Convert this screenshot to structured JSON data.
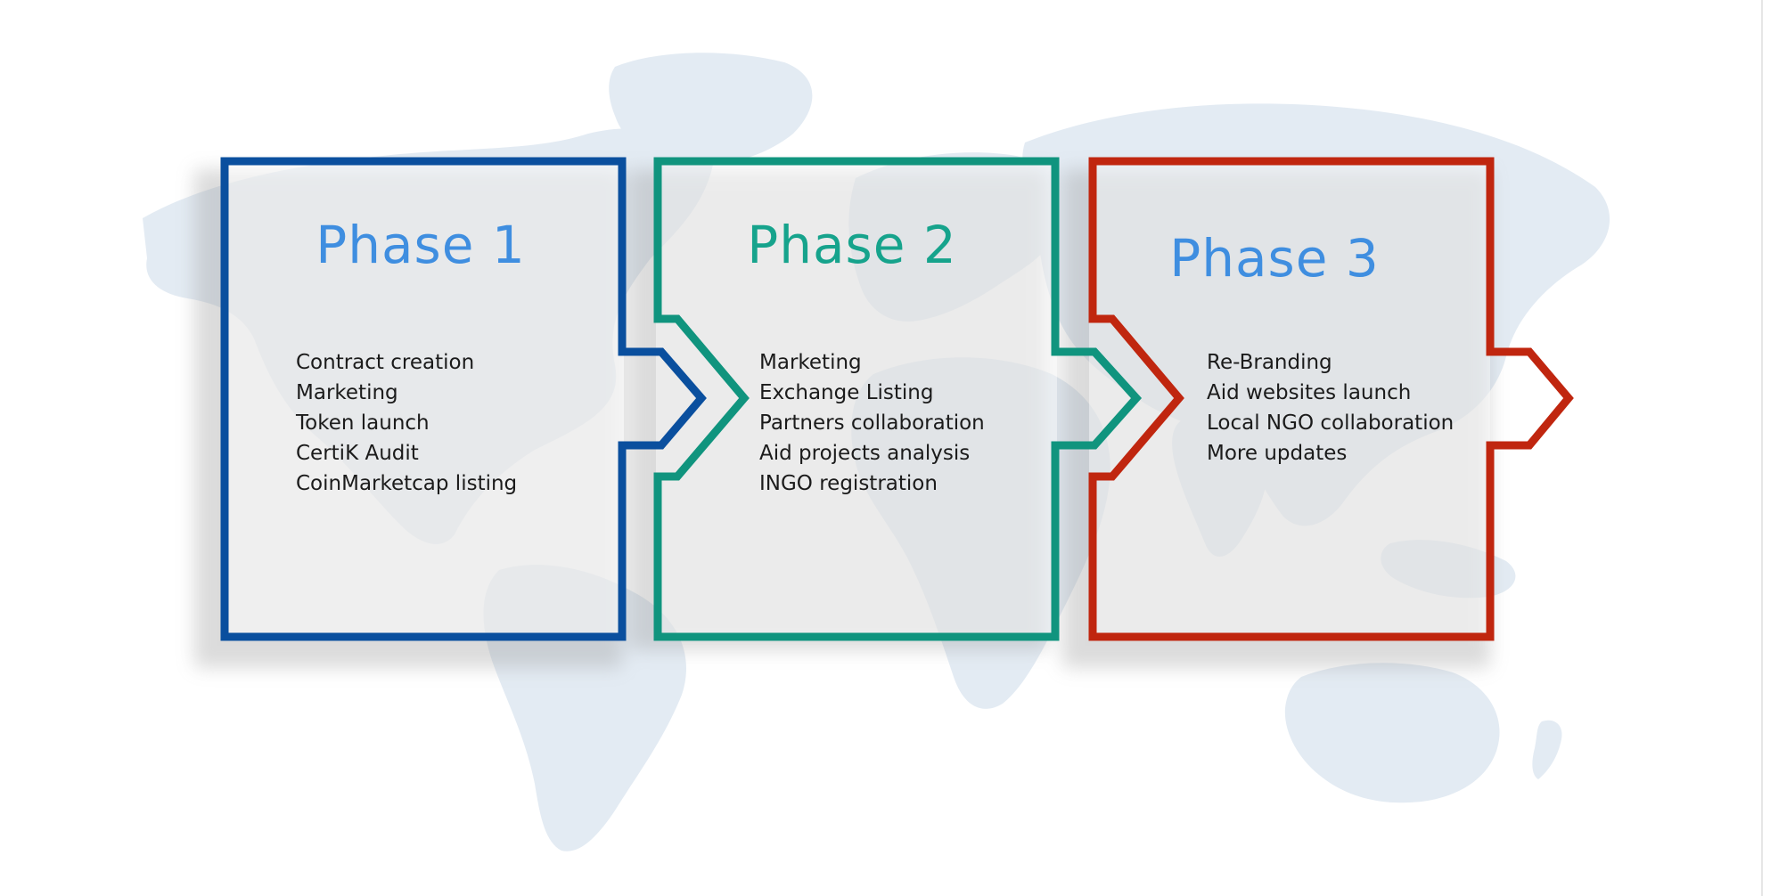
{
  "phases": [
    {
      "title": "Phase 1",
      "border_color": "#0a4f9e",
      "title_color": "#3f8ee0",
      "items": [
        "Contract creation",
        "Marketing",
        "Token launch",
        "CertiK Audit",
        "CoinMarketcap listing"
      ]
    },
    {
      "title": "Phase 2",
      "border_color": "#10947e",
      "title_color": "#16a38c",
      "items": [
        "Marketing",
        "Exchange Listing",
        "Partners collaboration",
        "Aid projects analysis",
        "INGO registration"
      ]
    },
    {
      "title": "Phase 3",
      "border_color": "#c0260f",
      "title_color": "#3f8ee0",
      "items": [
        "Re-Branding",
        "Aid websites launch",
        "Local NGO collaboration",
        "More updates"
      ]
    }
  ],
  "background": {
    "map_color": "#e3ebf3"
  }
}
